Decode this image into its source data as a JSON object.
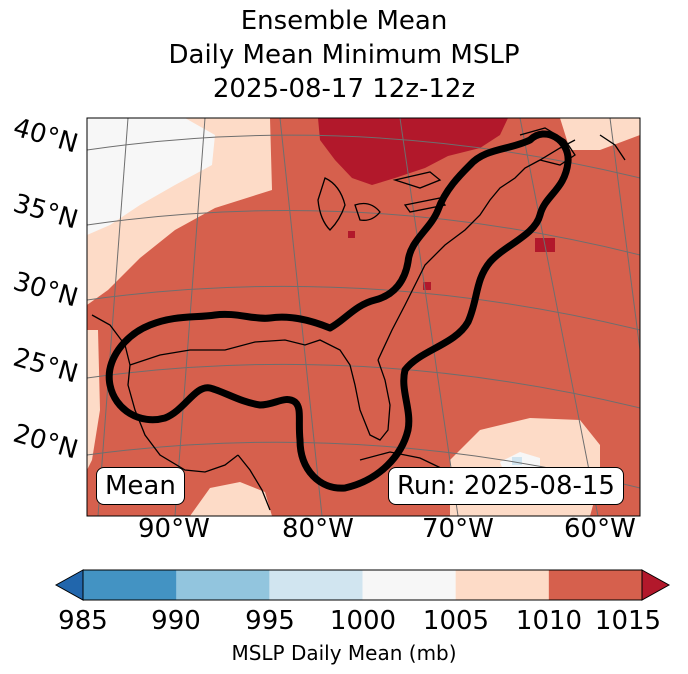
{
  "title": {
    "line1": "Ensemble Mean",
    "line2": "Daily Mean Minimum MSLP",
    "line3": "2025-08-17 12z-12z"
  },
  "map": {
    "lat_labels": [
      "40°N",
      "35°N",
      "30°N",
      "25°N",
      "20°N"
    ],
    "lon_labels": [
      "90°W",
      "80°W",
      "70°W",
      "60°W"
    ],
    "mean_label": "Mean",
    "run_label": "Run: 2025-08-15"
  },
  "colorbar": {
    "label": "MSLP Daily Mean (mb)",
    "ticks": [
      "985",
      "990",
      "995",
      "1000",
      "1005",
      "1010",
      "1015"
    ],
    "colors": [
      "#4393c3",
      "#92c5de",
      "#d1e5f0",
      "#f7f7f7",
      "#fddbc7",
      "#d6604d"
    ],
    "under_color": "#2166ac",
    "over_color": "#b2182b"
  }
}
